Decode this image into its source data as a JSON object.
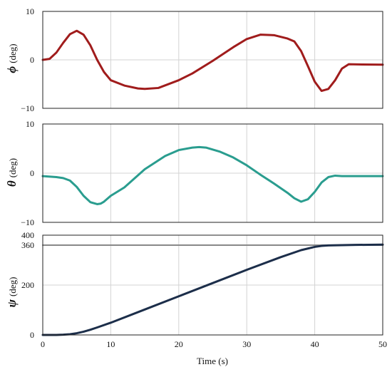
{
  "chart_data": [
    {
      "type": "line",
      "ylabel_symbol": "ϕ",
      "ylabel_unit": "(deg)",
      "xlim": [
        0,
        50
      ],
      "ylim": [
        -10,
        10
      ],
      "x_ticks": [
        0,
        10,
        20,
        30,
        40,
        50
      ],
      "y_ticks": [
        -10,
        0,
        10
      ],
      "y_tick_labels": [
        "−10",
        "0",
        "10"
      ],
      "grid": true,
      "series": [
        {
          "color": "#a01c1c",
          "x": [
            0,
            1,
            2,
            3,
            4,
            5,
            6,
            7,
            8,
            9,
            10,
            12,
            14,
            15,
            17,
            20,
            22,
            25,
            28,
            30,
            32,
            34,
            36,
            37,
            38,
            39,
            40,
            41,
            42,
            43,
            44,
            45,
            47,
            50
          ],
          "y": [
            0,
            0.2,
            1.5,
            3.5,
            5.3,
            6.0,
            5.2,
            3.0,
            0,
            -2.5,
            -4.2,
            -5.3,
            -5.9,
            -6.0,
            -5.8,
            -4.2,
            -2.8,
            -0.2,
            2.6,
            4.3,
            5.2,
            5.1,
            4.4,
            3.8,
            1.8,
            -1.3,
            -4.5,
            -6.4,
            -6.0,
            -4.2,
            -1.8,
            -0.9,
            -0.95,
            -1.0
          ]
        }
      ]
    },
    {
      "type": "line",
      "ylabel_symbol": "θ",
      "ylabel_unit": "(deg)",
      "xlim": [
        0,
        50
      ],
      "ylim": [
        -10,
        10
      ],
      "x_ticks": [
        0,
        10,
        20,
        30,
        40,
        50
      ],
      "y_ticks": [
        -10,
        0,
        10
      ],
      "y_tick_labels": [
        "−10",
        "0",
        "10"
      ],
      "grid": true,
      "series": [
        {
          "color": "#2a9d8f",
          "x": [
            0,
            2,
            3,
            4,
            5,
            6,
            7,
            8,
            8.5,
            9,
            10,
            12,
            15,
            18,
            20,
            22,
            23,
            24,
            26,
            28,
            30,
            32,
            34,
            36,
            37,
            38,
            39,
            40,
            41,
            42,
            43,
            44,
            46,
            50
          ],
          "y": [
            -0.6,
            -0.8,
            -1.0,
            -1.5,
            -2.8,
            -4.6,
            -5.9,
            -6.3,
            -6.2,
            -5.8,
            -4.6,
            -2.9,
            0.8,
            3.5,
            4.7,
            5.2,
            5.3,
            5.2,
            4.4,
            3.2,
            1.6,
            -0.3,
            -2.1,
            -4.0,
            -5.1,
            -5.8,
            -5.3,
            -3.8,
            -1.9,
            -0.8,
            -0.5,
            -0.6,
            -0.6,
            -0.6
          ]
        }
      ]
    },
    {
      "type": "line",
      "ylabel_symbol": "ψ",
      "ylabel_unit": "(deg)",
      "xlabel": "Time (s)",
      "xlim": [
        0,
        50
      ],
      "ylim": [
        0,
        400
      ],
      "x_ticks": [
        0,
        10,
        20,
        30,
        40,
        50
      ],
      "y_ticks": [
        0,
        200,
        360,
        400
      ],
      "y_tick_labels": [
        "0",
        "200",
        "360",
        "400"
      ],
      "grid": true,
      "series": [
        {
          "color": "#888888",
          "x": [
            0,
            50
          ],
          "y": [
            360,
            360
          ]
        },
        {
          "color": "#1c2e4a",
          "x": [
            0,
            2,
            3,
            4,
            5,
            6,
            7,
            8,
            10,
            15,
            20,
            25,
            30,
            35,
            38,
            40,
            41,
            42,
            44,
            46,
            50
          ],
          "y": [
            0,
            0,
            1,
            3,
            7,
            13,
            21,
            30,
            49,
            102,
            155,
            208,
            261,
            312,
            340,
            353,
            357,
            359,
            360,
            361,
            362
          ]
        }
      ]
    }
  ]
}
